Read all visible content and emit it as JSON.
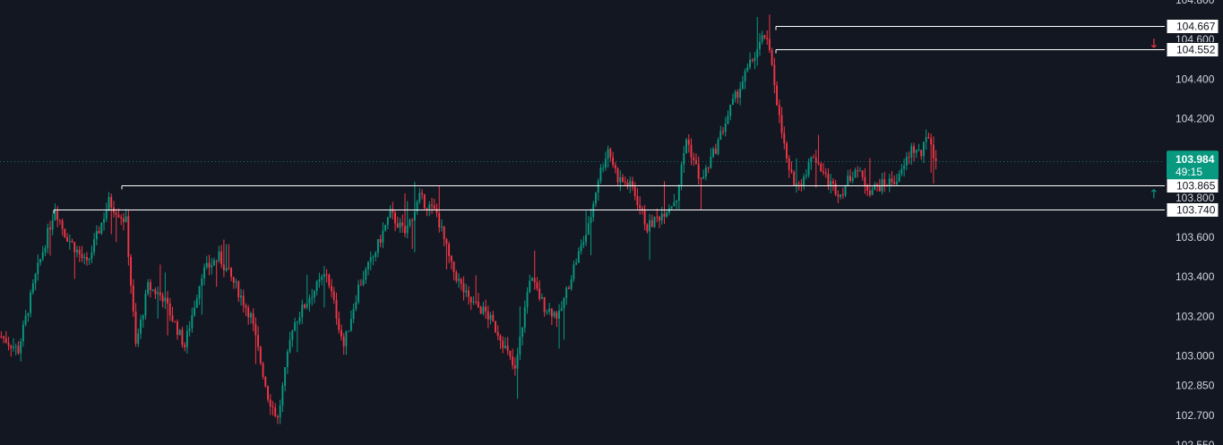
{
  "chart_data": {
    "type": "candlestick",
    "y_axis": {
      "ticks": [
        "104.800",
        "104.600",
        "104.400",
        "104.200",
        "103.800",
        "103.600",
        "103.400",
        "103.200",
        "103.000",
        "102.850",
        "102.700",
        "102.550"
      ],
      "tick_values": [
        104.8,
        104.6,
        104.4,
        104.2,
        103.8,
        103.6,
        103.4,
        103.2,
        103.0,
        102.85,
        102.7,
        102.55
      ],
      "range": [
        102.55,
        104.8
      ],
      "position": "right"
    },
    "current_price": {
      "value": "103.984",
      "countdown": "49:15",
      "color": "#089981"
    },
    "levels": [
      {
        "label": "104.667",
        "value": 104.667
      },
      {
        "label": "104.552",
        "value": 104.552
      },
      {
        "label": "103.865",
        "value": 103.865
      },
      {
        "label": "103.740",
        "value": 103.74
      }
    ],
    "arrows": [
      {
        "direction": "down",
        "glyph": "↓",
        "color": "#f23645",
        "value": 104.58
      },
      {
        "direction": "up",
        "glyph": "↑",
        "color": "#089981",
        "value": 103.82
      }
    ],
    "colors": {
      "up": "#089981",
      "down": "#f23645",
      "background": "#131722",
      "level_line": "#ffffff"
    },
    "anchors": [
      {
        "i": 0,
        "p": 103.1
      },
      {
        "i": 7,
        "p": 103.03
      },
      {
        "i": 14,
        "p": 103.4
      },
      {
        "i": 22,
        "p": 103.75
      },
      {
        "i": 26,
        "p": 103.62
      },
      {
        "i": 35,
        "p": 103.46
      },
      {
        "i": 44,
        "p": 103.78
      },
      {
        "i": 51,
        "p": 103.68
      },
      {
        "i": 55,
        "p": 103.05
      },
      {
        "i": 60,
        "p": 103.35
      },
      {
        "i": 66,
        "p": 103.3
      },
      {
        "i": 75,
        "p": 103.05
      },
      {
        "i": 82,
        "p": 103.42
      },
      {
        "i": 89,
        "p": 103.5
      },
      {
        "i": 96,
        "p": 103.35
      },
      {
        "i": 102,
        "p": 103.2
      },
      {
        "i": 109,
        "p": 102.8
      },
      {
        "i": 113,
        "p": 102.68
      },
      {
        "i": 119,
        "p": 103.15
      },
      {
        "i": 126,
        "p": 103.3
      },
      {
        "i": 133,
        "p": 103.42
      },
      {
        "i": 140,
        "p": 103.05
      },
      {
        "i": 146,
        "p": 103.35
      },
      {
        "i": 152,
        "p": 103.5
      },
      {
        "i": 159,
        "p": 103.72
      },
      {
        "i": 165,
        "p": 103.62
      },
      {
        "i": 171,
        "p": 103.8
      },
      {
        "i": 178,
        "p": 103.72
      },
      {
        "i": 184,
        "p": 103.45
      },
      {
        "i": 191,
        "p": 103.28
      },
      {
        "i": 198,
        "p": 103.22
      },
      {
        "i": 204,
        "p": 103.1
      },
      {
        "i": 210,
        "p": 102.92
      },
      {
        "i": 216,
        "p": 103.4
      },
      {
        "i": 222,
        "p": 103.25
      },
      {
        "i": 228,
        "p": 103.2
      },
      {
        "i": 234,
        "p": 103.45
      },
      {
        "i": 240,
        "p": 103.65
      },
      {
        "i": 244,
        "p": 103.9
      },
      {
        "i": 248,
        "p": 104.05
      },
      {
        "i": 252,
        "p": 103.9
      },
      {
        "i": 258,
        "p": 103.85
      },
      {
        "i": 264,
        "p": 103.65
      },
      {
        "i": 270,
        "p": 103.72
      },
      {
        "i": 276,
        "p": 103.8
      },
      {
        "i": 280,
        "p": 104.1
      },
      {
        "i": 286,
        "p": 103.88
      },
      {
        "i": 292,
        "p": 104.05
      },
      {
        "i": 298,
        "p": 104.25
      },
      {
        "i": 304,
        "p": 104.42
      },
      {
        "i": 309,
        "p": 104.55
      },
      {
        "i": 312,
        "p": 104.62
      },
      {
        "i": 315,
        "p": 104.48
      },
      {
        "i": 318,
        "p": 104.2
      },
      {
        "i": 322,
        "p": 103.92
      },
      {
        "i": 326,
        "p": 103.86
      },
      {
        "i": 332,
        "p": 104.02
      },
      {
        "i": 338,
        "p": 103.88
      },
      {
        "i": 343,
        "p": 103.82
      },
      {
        "i": 349,
        "p": 103.95
      },
      {
        "i": 355,
        "p": 103.84
      },
      {
        "i": 361,
        "p": 103.87
      },
      {
        "i": 367,
        "p": 103.9
      },
      {
        "i": 372,
        "p": 104.05
      },
      {
        "i": 376,
        "p": 104.02
      },
      {
        "i": 379,
        "p": 104.12
      },
      {
        "i": 382,
        "p": 103.98
      }
    ],
    "candle_count": 383
  }
}
